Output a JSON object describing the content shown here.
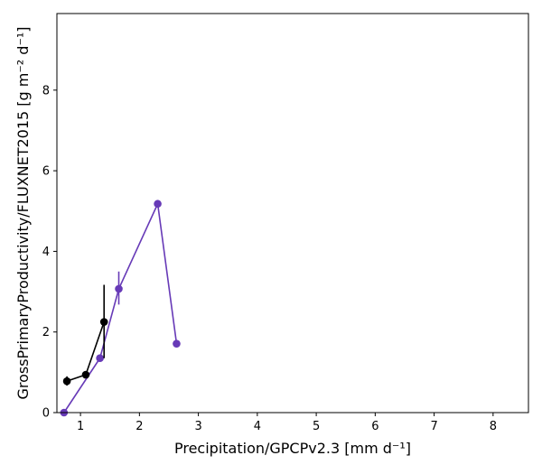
{
  "chart_data": {
    "type": "line",
    "xlabel": "Precipitation/GPCPv2.3 [mm d⁻¹]",
    "ylabel": "GrossPrimaryProductivity/FLUXNET2015 [g m⁻² d⁻¹]",
    "xlim": [
      0.6,
      8.6
    ],
    "ylim": [
      0,
      9.9
    ],
    "x_ticks": [
      1,
      2,
      3,
      4,
      5,
      6,
      7,
      8
    ],
    "y_ticks": [
      0,
      2,
      4,
      6,
      8
    ],
    "grid": false,
    "series": [
      {
        "color": "#673ab7",
        "points": [
          {
            "x": 0.72,
            "y": 0.0
          },
          {
            "x": 1.33,
            "y": 1.35
          },
          {
            "x": 1.65,
            "y": 3.07,
            "err_low": 2.68,
            "err_high": 3.5
          },
          {
            "x": 2.31,
            "y": 5.18
          },
          {
            "x": 2.63,
            "y": 1.71
          }
        ]
      },
      {
        "color": "#000000",
        "points": [
          {
            "x": 0.77,
            "y": 0.78,
            "err_low": 0.67,
            "err_high": 0.9
          },
          {
            "x": 1.09,
            "y": 0.94
          },
          {
            "x": 1.4,
            "y": 2.25,
            "err_low": 1.35,
            "err_high": 3.17
          }
        ]
      }
    ]
  }
}
